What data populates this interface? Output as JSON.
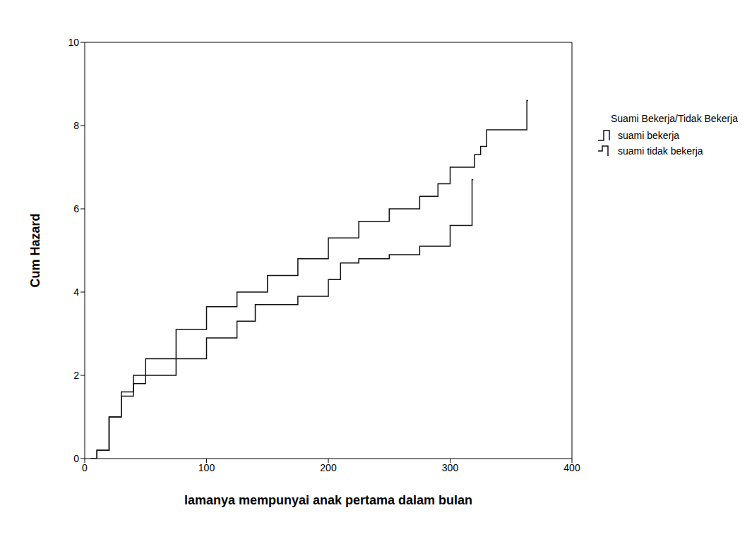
{
  "chart_data": {
    "type": "line",
    "x_label": "lamanya mempunyai anak pertama dalam bulan",
    "y_label": "Cum Hazard",
    "legend_title": "Suami Bekerja/Tidak Bekerja",
    "legend": "right",
    "line_style": "step",
    "xlim": [
      0,
      400
    ],
    "xticks": [
      0,
      100,
      200,
      300,
      400
    ],
    "ylim": [
      0,
      10
    ],
    "yticks": [
      0,
      2,
      4,
      6,
      8,
      10
    ],
    "series": [
      {
        "name": "suami bekerja",
        "color": "#111111",
        "x": [
          5,
          10,
          20,
          30,
          40,
          50,
          75,
          100,
          125,
          150,
          175,
          200,
          225,
          250,
          275,
          290,
          300,
          315,
          320,
          325,
          330,
          360,
          363,
          364
        ],
        "values": [
          0,
          0.2,
          1.0,
          1.6,
          2.0,
          2.4,
          3.1,
          3.65,
          4.0,
          4.4,
          4.8,
          5.3,
          5.7,
          6.0,
          6.3,
          6.6,
          7.0,
          7.0,
          7.3,
          7.5,
          7.9,
          7.9,
          8.6,
          8.6
        ]
      },
      {
        "name": "suami tidak bekerja",
        "color": "#111111",
        "x": [
          5,
          10,
          20,
          30,
          40,
          50,
          75,
          100,
          125,
          140,
          175,
          200,
          210,
          225,
          250,
          275,
          300,
          315,
          318,
          319
        ],
        "values": [
          0,
          0.2,
          1.0,
          1.5,
          1.8,
          2.0,
          2.4,
          2.9,
          3.3,
          3.7,
          3.9,
          4.3,
          4.7,
          4.8,
          4.9,
          5.1,
          5.6,
          5.6,
          6.7,
          6.7
        ]
      }
    ]
  }
}
